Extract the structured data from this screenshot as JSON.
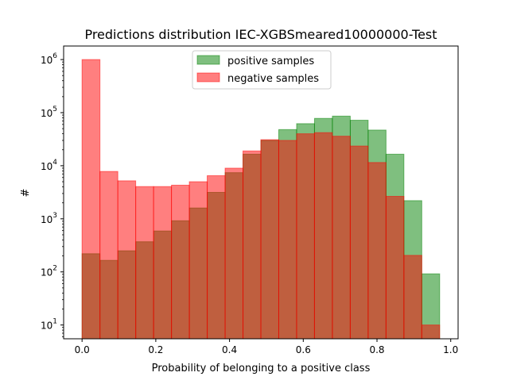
{
  "chart_data": {
    "type": "bar",
    "title": "Predictions distribution IEC-XGBSmeared10000000-Test",
    "xlabel": "Probability of belonging to a positive class",
    "ylabel": "#",
    "xlim": [
      -0.05,
      1.02
    ],
    "ylim": [
      5.5,
      1800000
    ],
    "yscale": "log",
    "grid": false,
    "legend_position": "upper center",
    "x_ticks": [
      0.0,
      0.2,
      0.4,
      0.6,
      0.8,
      1.0
    ],
    "x_tick_labels": [
      "0.0",
      "0.2",
      "0.4",
      "0.6",
      "0.8",
      "1.0"
    ],
    "y_ticks": [
      10,
      100,
      1000,
      10000,
      100000,
      1000000
    ],
    "y_tick_labels": [
      {
        "base": "10",
        "exp": "1"
      },
      {
        "base": "10",
        "exp": "2"
      },
      {
        "base": "10",
        "exp": "3"
      },
      {
        "base": "10",
        "exp": "4"
      },
      {
        "base": "10",
        "exp": "5"
      },
      {
        "base": "10",
        "exp": "6"
      }
    ],
    "series": [
      {
        "name": "positive samples",
        "fill": "#008000",
        "stroke": "#008000",
        "alpha": 0.5,
        "bins": [
          [
            0.0,
            0.0485,
            220
          ],
          [
            0.0485,
            0.097,
            165
          ],
          [
            0.097,
            0.1455,
            250
          ],
          [
            0.1455,
            0.194,
            370
          ],
          [
            0.194,
            0.2425,
            590
          ],
          [
            0.2425,
            0.291,
            920
          ],
          [
            0.291,
            0.3395,
            1600
          ],
          [
            0.3395,
            0.388,
            3150
          ],
          [
            0.388,
            0.4365,
            7400
          ],
          [
            0.4365,
            0.485,
            16500
          ],
          [
            0.485,
            0.5335,
            30000
          ],
          [
            0.5335,
            0.582,
            48000
          ],
          [
            0.582,
            0.6305,
            62000
          ],
          [
            0.6305,
            0.679,
            78000
          ],
          [
            0.679,
            0.7275,
            86000
          ],
          [
            0.7275,
            0.776,
            72000
          ],
          [
            0.776,
            0.8245,
            47000
          ],
          [
            0.8245,
            0.873,
            16500
          ],
          [
            0.873,
            0.9215,
            2200
          ],
          [
            0.9215,
            0.97,
            92
          ]
        ]
      },
      {
        "name": "negative samples",
        "fill": "#ff0000",
        "stroke": "#ff0000",
        "alpha": 0.5,
        "bins": [
          [
            0.0,
            0.0485,
            1000000
          ],
          [
            0.0485,
            0.097,
            7800
          ],
          [
            0.097,
            0.1455,
            5200
          ],
          [
            0.1455,
            0.194,
            4050
          ],
          [
            0.194,
            0.2425,
            4050
          ],
          [
            0.2425,
            0.291,
            4300
          ],
          [
            0.291,
            0.3395,
            5000
          ],
          [
            0.3395,
            0.388,
            6500
          ],
          [
            0.388,
            0.4365,
            9000
          ],
          [
            0.4365,
            0.485,
            19000
          ],
          [
            0.485,
            0.5335,
            31000
          ],
          [
            0.5335,
            0.582,
            30000
          ],
          [
            0.582,
            0.6305,
            40000
          ],
          [
            0.6305,
            0.679,
            42000
          ],
          [
            0.679,
            0.7275,
            36000
          ],
          [
            0.7275,
            0.776,
            23500
          ],
          [
            0.776,
            0.8245,
            11500
          ],
          [
            0.8245,
            0.873,
            2650
          ],
          [
            0.873,
            0.9215,
            205
          ],
          [
            0.9215,
            0.97,
            10
          ]
        ]
      }
    ]
  }
}
